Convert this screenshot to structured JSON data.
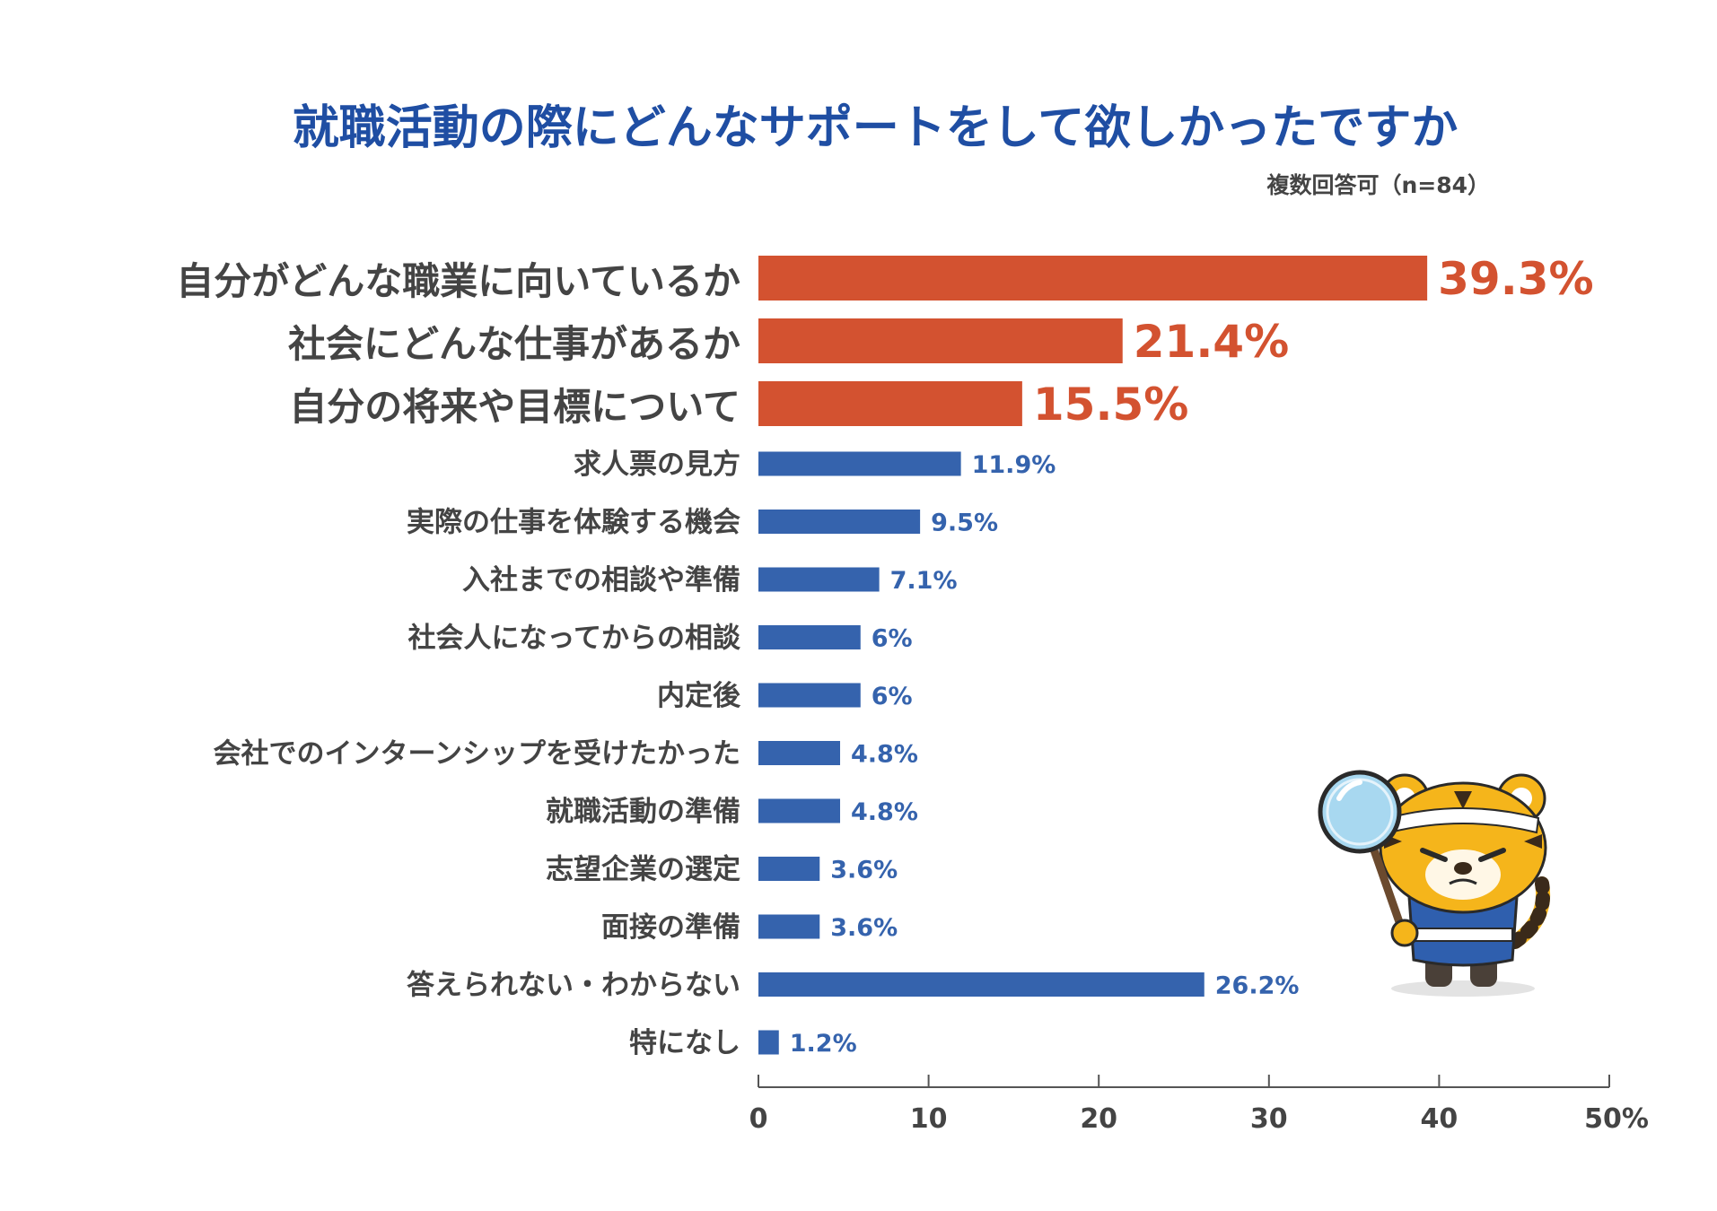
{
  "chart_data": {
    "type": "bar",
    "orientation": "horizontal",
    "title": "就職活動の際にどんなサポートをして欲しかったですか",
    "subtitle": "複数回答可（n=84）",
    "categories": [
      "自分がどんな職業に向いているか",
      "社会にどんな仕事があるか",
      "自分の将来や目標について",
      "求人票の見方",
      "実際の仕事を体験する機会",
      "入社までの相談や準備",
      "社会人になってからの相談",
      "内定後",
      "会社でのインターンシップを受けたかった",
      "就職活動の準備",
      "志望企業の選定",
      "面接の準備",
      "答えられない・わからない",
      "特になし"
    ],
    "values": [
      39.3,
      21.4,
      15.5,
      11.9,
      9.5,
      7.1,
      6,
      6,
      4.8,
      4.8,
      3.6,
      3.6,
      26.2,
      1.2
    ],
    "value_labels": [
      "39.3%",
      "21.4%",
      "15.5%",
      "11.9%",
      "9.5%",
      "7.1%",
      "6%",
      "6%",
      "4.8%",
      "4.8%",
      "3.6%",
      "3.6%",
      "26.2%",
      "1.2%"
    ],
    "highlight_top": 3,
    "xlim": [
      0,
      50
    ],
    "xticks": [
      "0",
      "10",
      "20",
      "30",
      "40",
      "50%"
    ],
    "grid": false,
    "colors": {
      "highlight": "#d35230",
      "normal": "#3563ad",
      "title": "#1f4ea3",
      "text": "#444444",
      "axis": "#555555"
    }
  },
  "mascot": {
    "icon": "tiger-with-magnifying-glass-icon"
  }
}
